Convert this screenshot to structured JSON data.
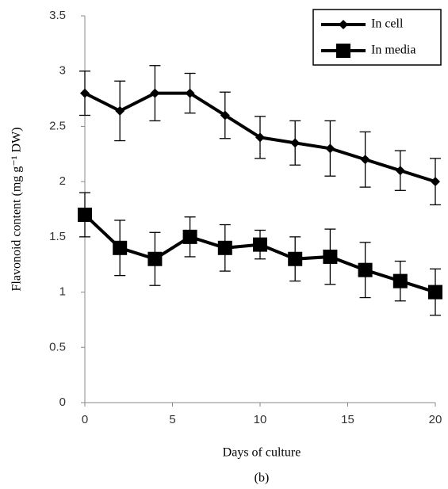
{
  "chart_data": {
    "type": "line",
    "x": [
      0,
      2,
      4,
      6,
      8,
      10,
      12,
      14,
      16,
      18,
      20
    ],
    "series": [
      {
        "name": "In cell",
        "color": "#000000",
        "marker": "diamond",
        "values": [
          2.8,
          2.64,
          2.8,
          2.8,
          2.6,
          2.4,
          2.35,
          2.3,
          2.2,
          2.1,
          2.0
        ],
        "errors": [
          0.2,
          0.27,
          0.25,
          0.18,
          0.21,
          0.19,
          0.2,
          0.25,
          0.25,
          0.18,
          0.21
        ]
      },
      {
        "name": "In media",
        "color": "#000000",
        "marker": "square",
        "values": [
          1.7,
          1.4,
          1.3,
          1.5,
          1.4,
          1.43,
          1.3,
          1.32,
          1.2,
          1.1,
          1.0
        ],
        "errors": [
          0.2,
          0.25,
          0.24,
          0.18,
          0.21,
          0.13,
          0.2,
          0.25,
          0.25,
          0.18,
          0.21
        ]
      }
    ],
    "xlabel": "Days of culture",
    "ylabel": "Flavonoid content (mg g⁻¹ DW)",
    "caption": "(b)",
    "xlim": [
      0,
      20
    ],
    "xticks": [
      0,
      5,
      10,
      15,
      20
    ],
    "ylim": [
      0,
      3.5
    ],
    "yticks": [
      0,
      0.5,
      1,
      1.5,
      2,
      2.5,
      3,
      3.5
    ],
    "legend": "upper right"
  }
}
